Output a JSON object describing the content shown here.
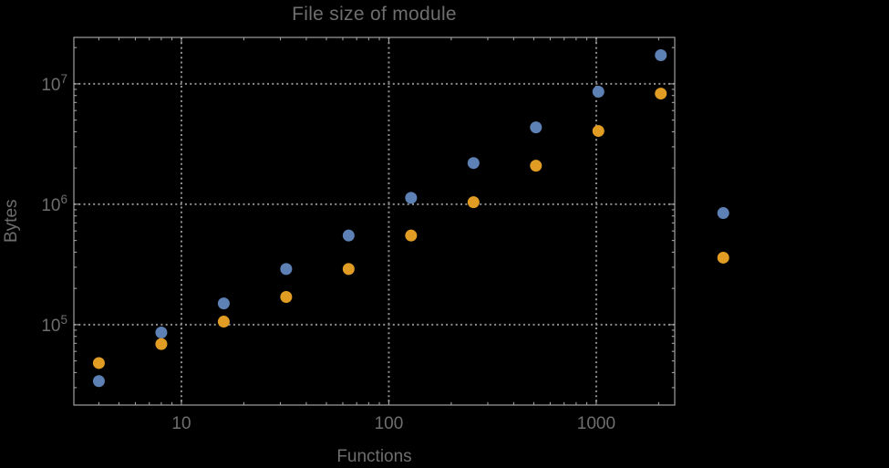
{
  "chart_data": {
    "type": "scatter",
    "title": "File size of module",
    "xlabel": "Functions",
    "ylabel": "Bytes",
    "x_scale": "log",
    "y_scale": "log",
    "xlim": [
      3.03,
      2390
    ],
    "ylim": [
      21500,
      24300000
    ],
    "grid": true,
    "grid_style": "dotted",
    "legend_position": "none",
    "background_color": "#000000",
    "frame_color": "#a0a0a0",
    "grid_color": "#8f8f8f",
    "text_color": "#6e6e6e",
    "x_ticks": [
      {
        "value": 10,
        "label": "10"
      },
      {
        "value": 100,
        "label": "100"
      },
      {
        "value": 1000,
        "label": "1000"
      }
    ],
    "y_ticks": [
      {
        "value": 100000,
        "mantissa": "10",
        "exponent": "5"
      },
      {
        "value": 1000000,
        "mantissa": "10",
        "exponent": "6"
      },
      {
        "value": 10000000,
        "mantissa": "10",
        "exponent": "7"
      }
    ],
    "series": [
      {
        "name": "blue",
        "color": "#5e81b5",
        "points": [
          [
            4,
            34000
          ],
          [
            8,
            86000
          ],
          [
            16,
            150000
          ],
          [
            32,
            290000
          ],
          [
            64,
            550000
          ],
          [
            128,
            1130000
          ],
          [
            256,
            2200000
          ],
          [
            512,
            4350000
          ],
          [
            1024,
            8600000
          ],
          [
            2048,
            17300000
          ],
          [
            4096,
            845000
          ]
        ]
      },
      {
        "name": "orange",
        "color": "#e19c24",
        "points": [
          [
            4,
            48000
          ],
          [
            8,
            69000
          ],
          [
            16,
            106000
          ],
          [
            32,
            170000
          ],
          [
            64,
            290000
          ],
          [
            128,
            550000
          ],
          [
            256,
            1040000
          ],
          [
            512,
            2090000
          ],
          [
            1024,
            4060000
          ],
          [
            2048,
            8300000
          ],
          [
            4096,
            360000
          ]
        ]
      }
    ]
  }
}
